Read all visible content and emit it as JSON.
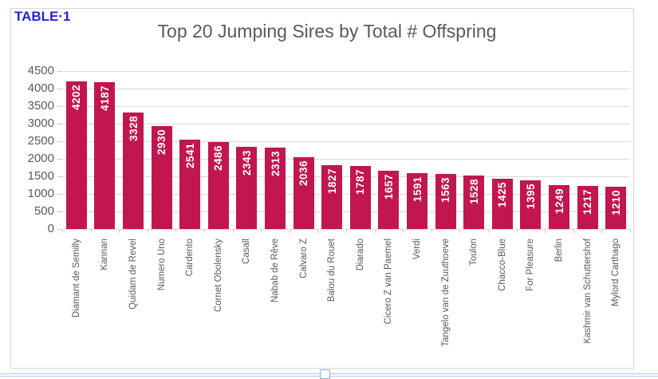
{
  "page": {
    "table_label": "TABLE·1"
  },
  "chart_data": {
    "type": "bar",
    "title": "Top 20 Jumping Sires by Total # Offspring",
    "categories": [
      "Diamant de Semilly",
      "Kannan",
      "Quidam de Revel",
      "Numero Uno",
      "Cardento",
      "Cornet Obolensky",
      "Casall",
      "Nabab de Rêve",
      "Calvaro Z",
      "Balou du Rouet",
      "Diarado",
      "Cicero Z van Paemel",
      "Verdi",
      "Tangelo van de Zuuthoeve",
      "Toulon",
      "Chacco-Blue",
      "For Pleasure",
      "Berlin",
      "Kashmir van Schuttershof",
      "Mylord Carthago"
    ],
    "values": [
      4202,
      4187,
      3328,
      2930,
      2541,
      2486,
      2343,
      2313,
      2036,
      1827,
      1787,
      1657,
      1591,
      1563,
      1528,
      1425,
      1395,
      1249,
      1217,
      1210
    ],
    "data_labels": [
      "4202",
      "4187",
      "3328",
      "2930",
      "2541",
      "2486",
      "2343",
      "2313",
      "2036",
      "1827",
      "1787",
      "1657",
      "1591",
      "1563",
      "1528",
      "1425",
      "1395",
      "1249",
      "1217",
      "1210"
    ],
    "xlabel": "",
    "ylabel": "",
    "ylim": [
      0,
      4500
    ],
    "y_ticks": [
      4500,
      4000,
      3500,
      3000,
      2500,
      2000,
      1500,
      1000,
      500,
      0
    ],
    "grid": true,
    "legend": "none",
    "bar_color": "#c2164f",
    "data_label_color": "#ffffff",
    "axis_text_color": "#595959",
    "gridline_color": "#d9d9d9"
  },
  "colors": {
    "table_label_blue": "#2222dd",
    "title_gray": "#595959",
    "frame_border": "#d6d6d6",
    "doc_border_blue": "#a9c7eb"
  }
}
